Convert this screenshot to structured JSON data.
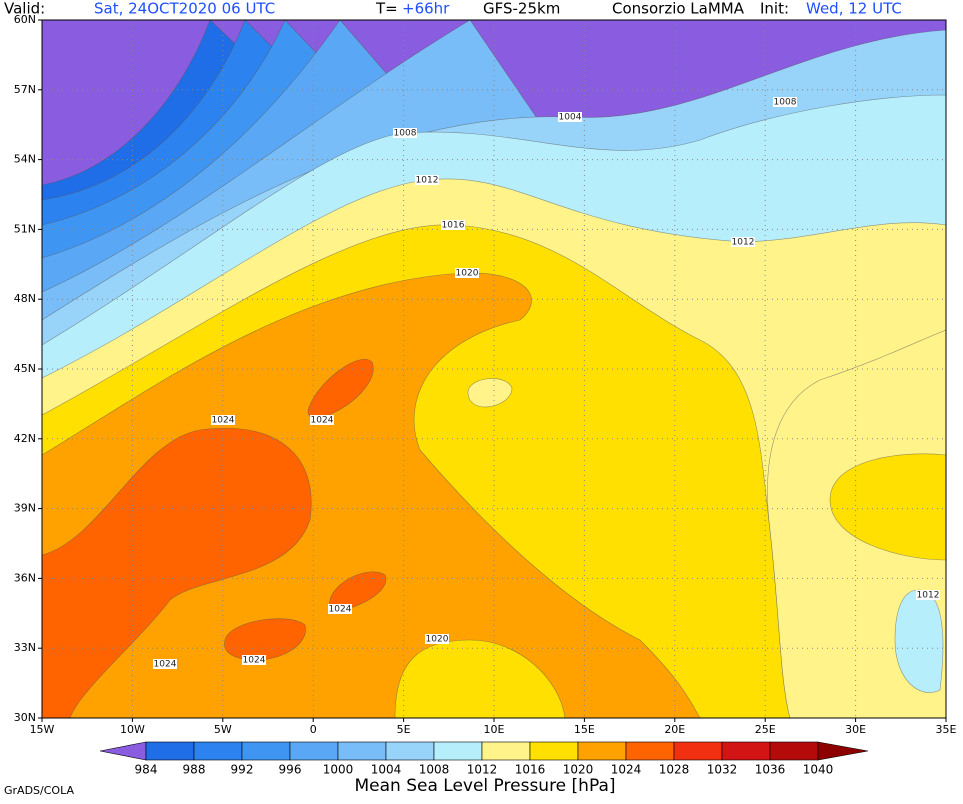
{
  "header": {
    "valid_label": "Valid:",
    "valid_value": "Sat, 24OCT2020 06 UTC",
    "t_label": "T=",
    "t_value": "+66hr",
    "model": "GFS-25km",
    "source": "Consorzio LaMMA",
    "init_label": "Init:",
    "init_value": "Wed, 12 UTC"
  },
  "map": {
    "lat_labels": [
      "60N",
      "57N",
      "54N",
      "51N",
      "48N",
      "45N",
      "42N",
      "39N",
      "36N",
      "33N",
      "30N"
    ],
    "lon_labels": [
      "15W",
      "10W",
      "5W",
      "0",
      "5E",
      "10E",
      "15E",
      "20E",
      "25E",
      "30E",
      "35E"
    ],
    "contour_labels": [
      1004,
      1008,
      1008,
      1012,
      1012,
      1016,
      1020,
      1024,
      1024,
      1024,
      1024,
      1024,
      1020,
      1012
    ]
  },
  "colorbar": {
    "title": "Mean Sea Level Pressure [hPa]",
    "levels": [
      984,
      988,
      992,
      996,
      1000,
      1004,
      1008,
      1012,
      1016,
      1020,
      1024,
      1028,
      1032,
      1036,
      1040
    ],
    "colors": [
      "#8a5ce0",
      "#1f6ee8",
      "#2c82ee",
      "#3f95f2",
      "#5aa8f5",
      "#78bdf8",
      "#98d3fa",
      "#b6effb",
      "#fff38a",
      "#ffe000",
      "#ffa200",
      "#ff6400",
      "#f03010",
      "#d21414",
      "#b40a0a",
      "#8c0000"
    ]
  },
  "footer": {
    "credit": "GrADS/COLA"
  }
}
